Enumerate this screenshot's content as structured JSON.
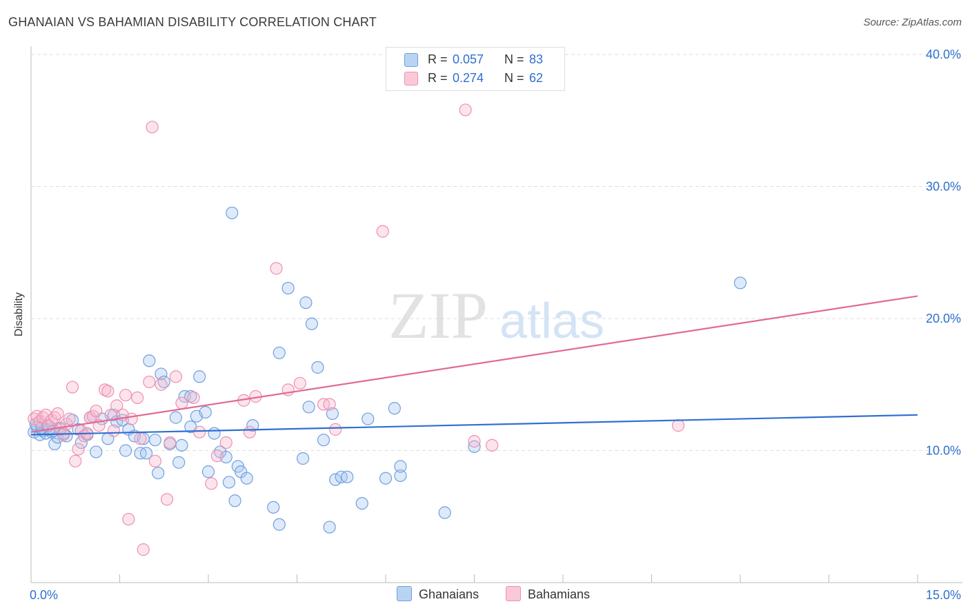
{
  "title": "GHANAIAN VS BAHAMIAN DISABILITY CORRELATION CHART",
  "source": "Source: ZipAtlas.com",
  "watermark": {
    "zip": "ZIP",
    "atlas": "atlas"
  },
  "legend": {
    "r_label": "R =",
    "n_label": "N =",
    "rows": [
      {
        "r": "0.057",
        "n": "83"
      },
      {
        "r": "0.274",
        "n": "62"
      }
    ]
  },
  "colors": {
    "blue_fill": "#a9c8f0",
    "blue_stroke": "#6f9fe0",
    "blue_line": "#2f6fd0",
    "pink_fill": "#f6b8cc",
    "pink_stroke": "#ee8fb0",
    "pink_line": "#e06a95",
    "tick_label": "#2f6fd0",
    "grid": "#dddddd"
  },
  "chart_data": {
    "type": "scatter",
    "xlabel": "",
    "ylabel": "Disability",
    "xlim": [
      0,
      15
    ],
    "ylim": [
      0,
      40
    ],
    "x_tick_labels": [
      "0.0%",
      "15.0%"
    ],
    "y_ticks": [
      10,
      20,
      30,
      40
    ],
    "y_tick_labels": [
      "10.0%",
      "20.0%",
      "30.0%",
      "40.0%"
    ],
    "grid": true,
    "legend_position": "top-center",
    "series": [
      {
        "name": "Ghanaians",
        "color": "#a9c8f0",
        "r": 0.057,
        "n": 83,
        "trend": {
          "x": [
            0,
            15
          ],
          "y": [
            11.2,
            12.7
          ]
        },
        "points": [
          [
            0.05,
            11.4
          ],
          [
            0.1,
            11.8
          ],
          [
            0.15,
            11.2
          ],
          [
            0.2,
            11.5
          ],
          [
            0.25,
            11.3
          ],
          [
            0.3,
            11.6
          ],
          [
            0.35,
            11.4
          ],
          [
            0.4,
            10.5
          ],
          [
            0.45,
            11.0
          ],
          [
            0.5,
            11.7
          ],
          [
            0.6,
            11.1
          ],
          [
            0.7,
            12.3
          ],
          [
            0.8,
            11.6
          ],
          [
            0.85,
            10.6
          ],
          [
            0.95,
            11.2
          ],
          [
            1.0,
            12.5
          ],
          [
            1.1,
            9.9
          ],
          [
            1.2,
            12.4
          ],
          [
            1.3,
            10.9
          ],
          [
            1.4,
            12.7
          ],
          [
            1.45,
            12.2
          ],
          [
            1.55,
            12.3
          ],
          [
            1.6,
            10.0
          ],
          [
            1.65,
            11.6
          ],
          [
            1.75,
            11.1
          ],
          [
            1.85,
            9.8
          ],
          [
            1.9,
            10.9
          ],
          [
            1.95,
            9.8
          ],
          [
            2.0,
            16.8
          ],
          [
            2.1,
            10.8
          ],
          [
            2.15,
            8.3
          ],
          [
            2.2,
            15.8
          ],
          [
            2.25,
            15.2
          ],
          [
            2.35,
            10.5
          ],
          [
            2.45,
            12.5
          ],
          [
            2.5,
            9.1
          ],
          [
            2.55,
            10.4
          ],
          [
            2.6,
            14.1
          ],
          [
            2.7,
            14.1
          ],
          [
            2.7,
            11.8
          ],
          [
            2.8,
            12.6
          ],
          [
            2.85,
            15.6
          ],
          [
            2.95,
            12.9
          ],
          [
            3.0,
            8.4
          ],
          [
            3.1,
            11.3
          ],
          [
            3.2,
            9.9
          ],
          [
            3.3,
            9.5
          ],
          [
            3.35,
            7.6
          ],
          [
            3.4,
            28.0
          ],
          [
            3.45,
            6.2
          ],
          [
            3.5,
            8.8
          ],
          [
            3.55,
            8.4
          ],
          [
            3.65,
            7.9
          ],
          [
            3.75,
            11.9
          ],
          [
            4.1,
            5.7
          ],
          [
            4.2,
            4.4
          ],
          [
            4.2,
            17.4
          ],
          [
            4.35,
            22.3
          ],
          [
            4.6,
            9.4
          ],
          [
            4.65,
            21.2
          ],
          [
            4.7,
            13.3
          ],
          [
            4.75,
            19.6
          ],
          [
            4.85,
            16.3
          ],
          [
            4.95,
            10.8
          ],
          [
            5.05,
            4.2
          ],
          [
            5.1,
            12.8
          ],
          [
            5.15,
            7.8
          ],
          [
            5.25,
            8.0
          ],
          [
            5.35,
            8.0
          ],
          [
            5.6,
            6.0
          ],
          [
            5.7,
            12.4
          ],
          [
            6.0,
            7.9
          ],
          [
            6.15,
            13.2
          ],
          [
            6.25,
            8.1
          ],
          [
            6.25,
            8.8
          ],
          [
            7.0,
            5.3
          ],
          [
            7.5,
            10.3
          ],
          [
            12.0,
            22.7
          ],
          [
            0.08,
            12.0
          ],
          [
            0.18,
            11.7
          ],
          [
            0.28,
            11.9
          ],
          [
            0.38,
            11.5
          ],
          [
            0.55,
            11.3
          ]
        ]
      },
      {
        "name": "Bahamians",
        "color": "#f6b8cc",
        "r": 0.274,
        "n": 62,
        "trend": {
          "x": [
            0,
            15
          ],
          "y": [
            11.4,
            21.7
          ]
        },
        "points": [
          [
            0.05,
            12.4
          ],
          [
            0.1,
            12.6
          ],
          [
            0.15,
            12.2
          ],
          [
            0.2,
            12.5
          ],
          [
            0.25,
            12.7
          ],
          [
            0.3,
            11.9
          ],
          [
            0.35,
            12.3
          ],
          [
            0.4,
            12.5
          ],
          [
            0.45,
            12.8
          ],
          [
            0.5,
            11.6
          ],
          [
            0.55,
            11.2
          ],
          [
            0.6,
            12.0
          ],
          [
            0.65,
            12.4
          ],
          [
            0.7,
            14.8
          ],
          [
            0.75,
            9.2
          ],
          [
            0.8,
            10.1
          ],
          [
            0.85,
            11.5
          ],
          [
            0.9,
            11.1
          ],
          [
            0.95,
            11.3
          ],
          [
            1.0,
            12.5
          ],
          [
            1.05,
            12.6
          ],
          [
            1.1,
            13.0
          ],
          [
            1.15,
            11.9
          ],
          [
            1.25,
            14.6
          ],
          [
            1.3,
            14.5
          ],
          [
            1.35,
            12.7
          ],
          [
            1.4,
            11.5
          ],
          [
            1.45,
            13.4
          ],
          [
            1.55,
            12.7
          ],
          [
            1.6,
            14.2
          ],
          [
            1.65,
            4.8
          ],
          [
            1.7,
            12.4
          ],
          [
            1.8,
            14.0
          ],
          [
            1.85,
            10.9
          ],
          [
            1.9,
            2.5
          ],
          [
            2.0,
            15.2
          ],
          [
            2.05,
            34.5
          ],
          [
            2.1,
            9.2
          ],
          [
            2.2,
            15.0
          ],
          [
            2.3,
            6.3
          ],
          [
            2.35,
            10.6
          ],
          [
            2.45,
            15.6
          ],
          [
            2.55,
            13.6
          ],
          [
            2.75,
            14.0
          ],
          [
            2.85,
            11.4
          ],
          [
            3.05,
            7.5
          ],
          [
            3.15,
            9.6
          ],
          [
            3.3,
            10.6
          ],
          [
            3.6,
            13.8
          ],
          [
            3.7,
            11.4
          ],
          [
            3.8,
            14.1
          ],
          [
            4.15,
            23.8
          ],
          [
            4.35,
            14.6
          ],
          [
            4.55,
            15.1
          ],
          [
            4.95,
            13.5
          ],
          [
            5.05,
            13.5
          ],
          [
            5.15,
            11.6
          ],
          [
            5.95,
            26.6
          ],
          [
            7.35,
            35.8
          ],
          [
            7.5,
            10.7
          ],
          [
            7.8,
            10.4
          ],
          [
            10.95,
            11.9
          ]
        ]
      }
    ]
  },
  "bottom_legend": [
    "Ghanaians",
    "Bahamians"
  ]
}
